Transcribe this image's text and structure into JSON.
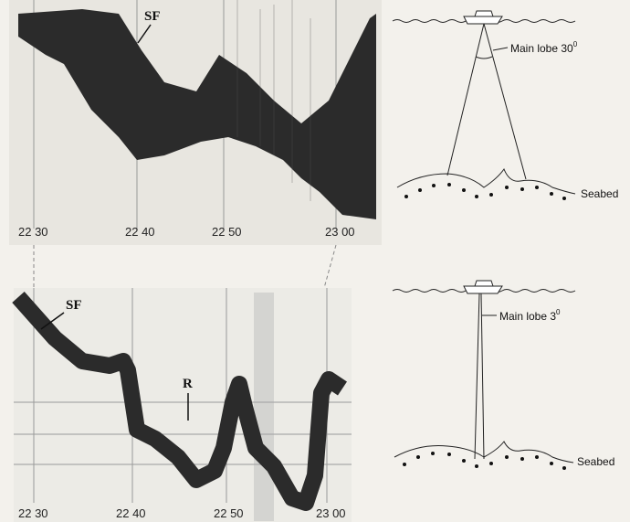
{
  "echogram_wide": {
    "markers": [
      "SF"
    ],
    "times": [
      "22 30",
      "22 40",
      "22 50",
      "23 00"
    ]
  },
  "echogram_narrow": {
    "markers": [
      "SF",
      "R"
    ],
    "times": [
      "22 30",
      "22 40",
      "22 50",
      "23 00"
    ]
  },
  "diagram_wide": {
    "beam_label": "Main lobe 30",
    "beam_unit": "0",
    "seabed_label": "Seabed"
  },
  "diagram_narrow": {
    "beam_label": "Main lobe 3",
    "beam_unit": "0",
    "seabed_label": "Seabed"
  }
}
